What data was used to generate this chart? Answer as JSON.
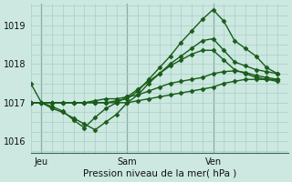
{
  "background_color": "#cce8e0",
  "grid_color": "#a8cfc8",
  "line_color": "#1a5c1a",
  "xlabel": "Pression niveau de la mer( hPa )",
  "ylim": [
    1015.7,
    1019.55
  ],
  "yticks": [
    1016,
    1017,
    1018,
    1019
  ],
  "xlim": [
    0,
    24
  ],
  "x_ticks_pos": [
    1,
    9,
    17
  ],
  "x_tick_labels": [
    "Jeu",
    "Sam",
    "Ven"
  ],
  "x_vlines": [
    1,
    9,
    17
  ],
  "series": [
    {
      "x": [
        0,
        1,
        2,
        3,
        4,
        5,
        6,
        7,
        8,
        9,
        10,
        11,
        12,
        13,
        14,
        15,
        16,
        17,
        18,
        19,
        20,
        21,
        22,
        23
      ],
      "y": [
        1017.5,
        1017.0,
        1017.0,
        1017.0,
        1017.0,
        1017.0,
        1017.0,
        1017.0,
        1017.05,
        1017.1,
        1017.3,
        1017.6,
        1017.9,
        1018.2,
        1018.55,
        1018.85,
        1019.15,
        1019.4,
        1019.1,
        1018.6,
        1018.4,
        1018.2,
        1017.9,
        1017.75
      ]
    },
    {
      "x": [
        0,
        1,
        2,
        3,
        4,
        5,
        6,
        7,
        8,
        9,
        10,
        11,
        12,
        13,
        14,
        15,
        16,
        17,
        18,
        19,
        20,
        21,
        22,
        23
      ],
      "y": [
        1017.0,
        1017.0,
        1016.85,
        1016.75,
        1016.6,
        1016.45,
        1016.3,
        1016.5,
        1016.7,
        1017.0,
        1017.2,
        1017.5,
        1017.75,
        1018.0,
        1018.2,
        1018.4,
        1018.6,
        1018.65,
        1018.35,
        1018.05,
        1017.95,
        1017.85,
        1017.8,
        1017.75
      ]
    },
    {
      "x": [
        0,
        1,
        2,
        3,
        4,
        5,
        6,
        7,
        8,
        9,
        10,
        11,
        12,
        13,
        14,
        15,
        16,
        17,
        18,
        19,
        20,
        21,
        22,
        23
      ],
      "y": [
        1017.0,
        1017.0,
        1016.9,
        1016.78,
        1016.55,
        1016.35,
        1016.62,
        1016.85,
        1017.0,
        1017.15,
        1017.35,
        1017.55,
        1017.75,
        1017.95,
        1018.1,
        1018.25,
        1018.35,
        1018.35,
        1018.1,
        1017.85,
        1017.75,
        1017.65,
        1017.6,
        1017.55
      ]
    },
    {
      "x": [
        0,
        1,
        2,
        3,
        4,
        5,
        6,
        7,
        8,
        9,
        10,
        11,
        12,
        13,
        14,
        15,
        16,
        17,
        18,
        19,
        20,
        21,
        22,
        23
      ],
      "y": [
        1017.0,
        1017.0,
        1017.0,
        1017.0,
        1017.0,
        1017.0,
        1017.05,
        1017.1,
        1017.1,
        1017.15,
        1017.2,
        1017.3,
        1017.4,
        1017.5,
        1017.55,
        1017.6,
        1017.65,
        1017.75,
        1017.8,
        1017.82,
        1017.78,
        1017.7,
        1017.65,
        1017.6
      ]
    },
    {
      "x": [
        0,
        1,
        2,
        3,
        4,
        5,
        6,
        7,
        8,
        9,
        10,
        11,
        12,
        13,
        14,
        15,
        16,
        17,
        18,
        19,
        20,
        21,
        22,
        23
      ],
      "y": [
        1017.0,
        1017.0,
        1017.0,
        1017.0,
        1017.0,
        1017.0,
        1017.0,
        1017.0,
        1017.0,
        1017.0,
        1017.05,
        1017.1,
        1017.15,
        1017.2,
        1017.25,
        1017.3,
        1017.35,
        1017.4,
        1017.5,
        1017.55,
        1017.6,
        1017.6,
        1017.6,
        1017.6
      ]
    }
  ],
  "marker": "D",
  "marker_size": 2.5,
  "linewidth": 1.0
}
